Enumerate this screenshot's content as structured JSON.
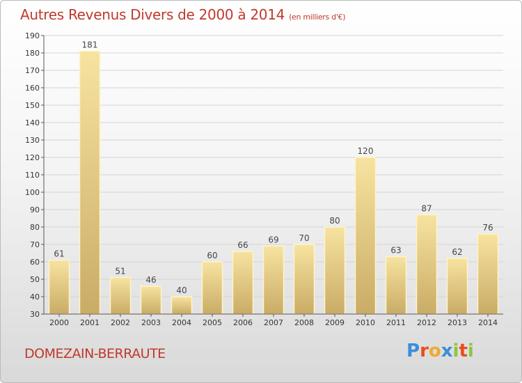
{
  "header": {
    "title": "Autres Revenus Divers de 2000 à 2014",
    "subtitle": "(en milliers d'€)"
  },
  "footer": {
    "commune": "DOMEZAIN-BERRAUTE",
    "logo": [
      "P",
      "r",
      "o",
      "x",
      "i",
      "t",
      "i"
    ]
  },
  "colors": {
    "title": "#c0392b",
    "bar_light": "#f7e3a0",
    "bar_dark": "#c9ac66",
    "logo": [
      "#3b8ed8",
      "#e84e1b",
      "#f0a830",
      "#3b8ed8",
      "#8cc63f",
      "#e84e1b",
      "#8cc63f"
    ]
  },
  "chart_data": {
    "type": "bar",
    "categories": [
      "2000",
      "2001",
      "2002",
      "2003",
      "2004",
      "2005",
      "2006",
      "2007",
      "2008",
      "2009",
      "2010",
      "2011",
      "2012",
      "2013",
      "2014"
    ],
    "values": [
      61,
      181,
      51,
      46,
      40,
      60,
      66,
      69,
      70,
      80,
      120,
      63,
      87,
      62,
      76
    ],
    "ylim": [
      30,
      190
    ],
    "yticks": [
      30,
      40,
      50,
      60,
      70,
      80,
      90,
      100,
      110,
      120,
      130,
      140,
      150,
      160,
      170,
      180,
      190
    ],
    "grid": "horizontal"
  }
}
